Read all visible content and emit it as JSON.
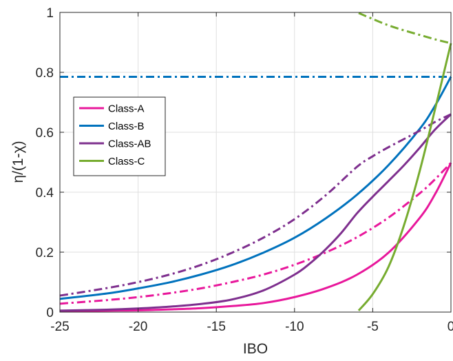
{
  "chart_data": {
    "type": "line",
    "title": "",
    "xlabel": "IBO",
    "ylabel": "η/(1-χ)",
    "xlim": [
      -25,
      0
    ],
    "ylim": [
      0,
      1
    ],
    "xticks": [
      -25,
      -20,
      -15,
      -10,
      -5,
      0
    ],
    "xtick_labels": [
      "-25",
      "-20",
      "-15",
      "-10",
      "-5",
      "0"
    ],
    "yticks": [
      0,
      0.2,
      0.4,
      0.6,
      0.8,
      1
    ],
    "ytick_labels": [
      "0",
      "0.2",
      "0.4",
      "0.6",
      "0.8",
      "1"
    ],
    "grid": true,
    "legend": {
      "position": "left-upper"
    },
    "colors": {
      "class_a": "#E8179B",
      "class_b": "#0072BD",
      "class_ab": "#7E2F8E",
      "class_c": "#77AC30"
    },
    "series": [
      {
        "name": "Class-A",
        "key": "class_a",
        "style": "solid",
        "in_legend": true,
        "x": [
          -25,
          -22,
          -20,
          -18,
          -16,
          -14,
          -12,
          -10,
          -8,
          -6,
          -4,
          -2,
          -1,
          0
        ],
        "y": [
          0.003,
          0.005,
          0.006,
          0.009,
          0.013,
          0.02,
          0.03,
          0.05,
          0.08,
          0.125,
          0.198,
          0.314,
          0.395,
          0.498
        ]
      },
      {
        "name": "",
        "key": "class_a",
        "style": "dashdot",
        "in_legend": false,
        "x": [
          -25,
          -22,
          -20,
          -18,
          -16,
          -14,
          -12,
          -10,
          -8,
          -6,
          -4,
          -2,
          -1,
          0
        ],
        "y": [
          0.028,
          0.04,
          0.05,
          0.063,
          0.079,
          0.1,
          0.125,
          0.158,
          0.199,
          0.25,
          0.315,
          0.396,
          0.444,
          0.498
        ]
      },
      {
        "name": "Class-B",
        "key": "class_b",
        "style": "solid",
        "in_legend": true,
        "x": [
          -25,
          -22,
          -20,
          -18,
          -16,
          -14,
          -12,
          -10,
          -8,
          -6,
          -4,
          -2,
          -1,
          0
        ],
        "y": [
          0.044,
          0.062,
          0.079,
          0.099,
          0.125,
          0.157,
          0.198,
          0.248,
          0.313,
          0.392,
          0.49,
          0.611,
          0.69,
          0.785
        ]
      },
      {
        "name": "",
        "key": "class_b",
        "style": "dashdot",
        "in_legend": false,
        "x": [
          -25,
          0
        ],
        "y": [
          0.785,
          0.785
        ]
      },
      {
        "name": "Class-AB",
        "key": "class_ab",
        "style": "solid",
        "in_legend": true,
        "x": [
          -25,
          -22,
          -20,
          -18,
          -16,
          -14,
          -12,
          -10,
          -9,
          -8,
          -7,
          -6,
          -5,
          -4,
          -3,
          -2,
          -1,
          0
        ],
        "y": [
          0.005,
          0.008,
          0.012,
          0.018,
          0.027,
          0.042,
          0.072,
          0.125,
          0.163,
          0.21,
          0.265,
          0.33,
          0.385,
          0.437,
          0.49,
          0.548,
          0.61,
          0.66
        ]
      },
      {
        "name": "",
        "key": "class_ab",
        "style": "dashdot",
        "in_legend": false,
        "x": [
          -25,
          -22,
          -20,
          -18,
          -16,
          -14,
          -12,
          -10,
          -8,
          -6,
          -5,
          -4,
          -2,
          -1,
          0
        ],
        "y": [
          0.055,
          0.08,
          0.1,
          0.125,
          0.157,
          0.198,
          0.248,
          0.31,
          0.39,
          0.485,
          0.52,
          0.55,
          0.605,
          0.635,
          0.66
        ]
      },
      {
        "name": "Class-C",
        "key": "class_c",
        "style": "solid",
        "in_legend": true,
        "x": [
          -5.9,
          -5,
          -4,
          -3,
          -2,
          -1,
          0
        ],
        "y": [
          0.005,
          0.06,
          0.15,
          0.29,
          0.47,
          0.68,
          0.897
        ]
      },
      {
        "name": "",
        "key": "class_c",
        "style": "dashdot",
        "in_legend": false,
        "x": [
          -5.9,
          -5,
          -4,
          -3,
          -2,
          -1,
          0
        ],
        "y": [
          0.998,
          0.978,
          0.957,
          0.94,
          0.925,
          0.91,
          0.897
        ]
      }
    ]
  }
}
